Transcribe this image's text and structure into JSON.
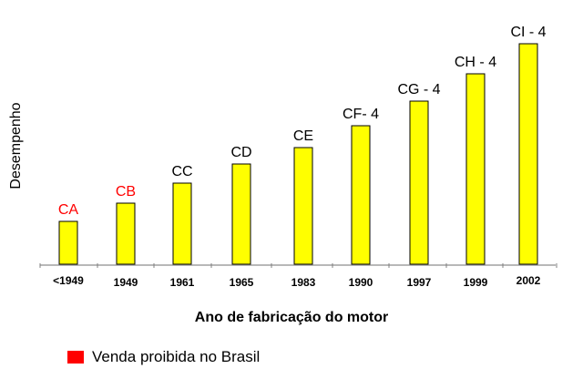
{
  "chart_data": {
    "type": "bar",
    "title": "",
    "xlabel": "Ano de fabricação do motor",
    "ylabel": "Desempenho",
    "categories": [
      "<1949",
      "1949",
      "1961",
      "1965",
      "1983",
      "1990",
      "1997",
      "1999",
      "2002"
    ],
    "bar_labels": [
      "CA",
      "CB",
      "CC",
      "CD",
      "CE",
      "CF- 4",
      "CG - 4",
      "CH - 4",
      "CI - 4"
    ],
    "values": [
      47,
      67,
      89,
      110,
      128,
      152,
      179,
      209,
      242
    ],
    "highlighted": [
      true,
      true,
      false,
      false,
      false,
      false,
      false,
      false,
      false
    ],
    "bar_color": "#ffff00",
    "bar_border_color": "#000000",
    "highlight_label_color": "#ff0000",
    "label_color": "#000000",
    "grid": false,
    "legend": {
      "position": "bottom-left",
      "entries": [
        {
          "label": "Venda proibida no Brasil",
          "color": "#ff0000"
        }
      ]
    }
  },
  "axis": {
    "ylabel": "Desempenho",
    "xlabel": "Ano de fabricação do motor"
  },
  "legend": {
    "label": "Venda proibida no Brasil"
  }
}
